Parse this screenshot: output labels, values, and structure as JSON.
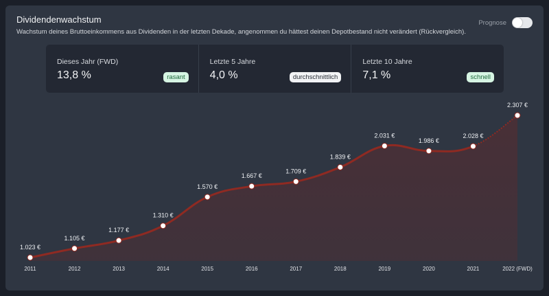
{
  "header": {
    "title": "Dividendenwachstum",
    "subtitle": "Wachstum deines Bruttoeinkommens aus Dividenden in der letzten Dekade, angenommen du hättest deinen Depotbestand nicht verändert (Rückvergleich).",
    "toggle_label": "Prognose",
    "toggle_on": true
  },
  "stats": [
    {
      "label": "Dieses Jahr (FWD)",
      "value": "13,8 %",
      "badge": "rasant",
      "badge_color": "#d6f5e3"
    },
    {
      "label": "Letzte 5 Jahre",
      "value": "4,0 %",
      "badge": "durchschnittlich",
      "badge_color": "#f2f3f5"
    },
    {
      "label": "Letzte 10 Jahre",
      "value": "7,1 %",
      "badge": "schnell",
      "badge_color": "#d6f5e3"
    }
  ],
  "chart_data": {
    "type": "area",
    "categories": [
      "2011",
      "2012",
      "2013",
      "2014",
      "2015",
      "2016",
      "2017",
      "2018",
      "2019",
      "2020",
      "2021",
      "2022 (FWD)"
    ],
    "values": [
      1023,
      1105,
      1177,
      1310,
      1570,
      1667,
      1709,
      1839,
      2031,
      1986,
      2028,
      2307
    ],
    "data_labels": [
      "1.023 €",
      "1.105 €",
      "1.177 €",
      "1.310 €",
      "1.570 €",
      "1.667 €",
      "1.709 €",
      "1.839 €",
      "2.031 €",
      "1.986 €",
      "2.028 €",
      "2.307 €"
    ],
    "forecast_last_point": true,
    "line_color": "#8f2a22",
    "fill_color": "#4a2f36",
    "grid": false
  }
}
